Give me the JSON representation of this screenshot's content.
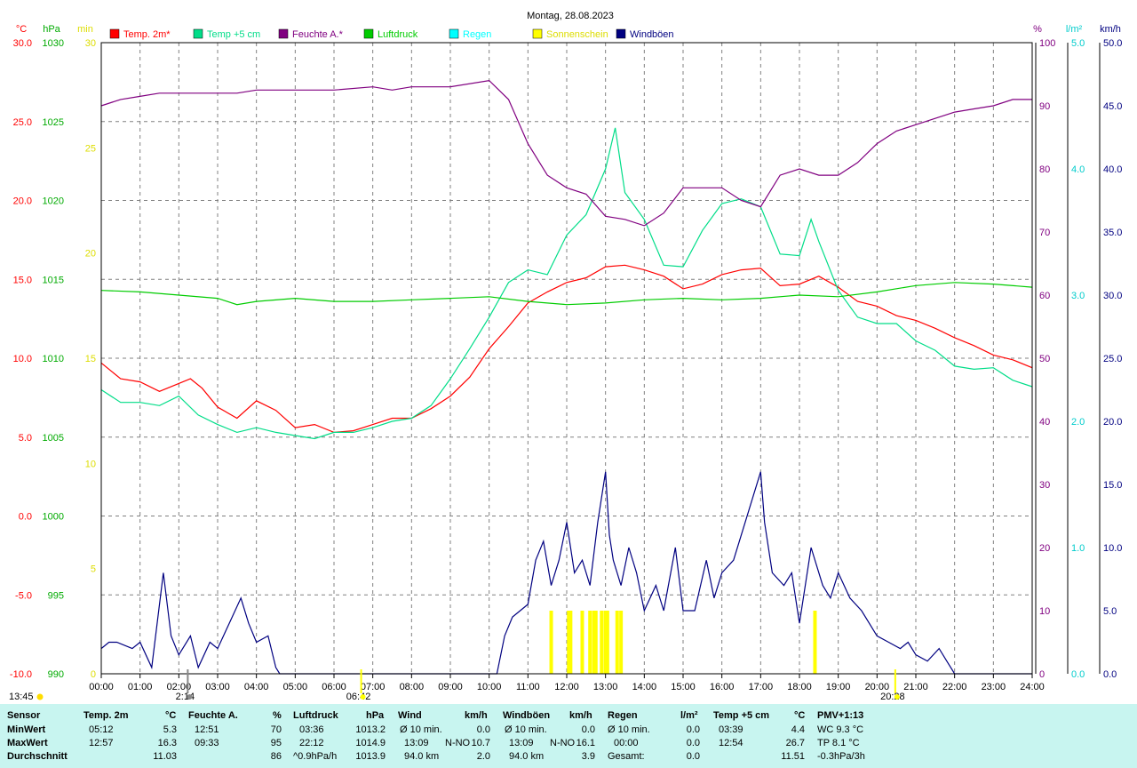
{
  "chart_data": {
    "type": "line",
    "title": "Montag, 28.08.2023",
    "x_ticks": [
      "00:00",
      "01:00",
      "02:00",
      "03:00",
      "04:00",
      "05:00",
      "06:00",
      "07:00",
      "08:00",
      "09:00",
      "10:00",
      "11:00",
      "12:00",
      "13:00",
      "14:00",
      "15:00",
      "16:00",
      "17:00",
      "18:00",
      "19:00",
      "20:00",
      "21:00",
      "22:00",
      "23:00",
      "24:00"
    ],
    "axes": {
      "temp": {
        "unit": "°C",
        "ticks": [
          "30.0",
          "25.0",
          "20.0",
          "15.0",
          "10.0",
          "5.0",
          "0.0",
          "-5.0",
          "-10.0"
        ],
        "range": [
          -10,
          30
        ],
        "color": "#ff0000"
      },
      "pressure": {
        "unit": "hPa",
        "ticks": [
          "1030",
          "1025",
          "1020",
          "1015",
          "1010",
          "1005",
          "1000",
          "995",
          "990"
        ],
        "range": [
          990,
          1030
        ],
        "color": "#00aa00"
      },
      "sunshine": {
        "unit": "min",
        "ticks": [
          "30",
          "25",
          "20",
          "15",
          "10",
          "5",
          "0"
        ],
        "range": [
          0,
          30
        ],
        "color": "#dddd00"
      },
      "humidity": {
        "unit": "%",
        "ticks": [
          "100",
          "90",
          "80",
          "70",
          "60",
          "50",
          "40",
          "30",
          "20",
          "10",
          "0"
        ],
        "range": [
          0,
          100
        ],
        "color": "#800080"
      },
      "rain": {
        "unit": "l/m²",
        "ticks": [
          "5.0",
          "4.0",
          "3.0",
          "2.0",
          "1.0",
          "0.0"
        ],
        "range": [
          0,
          5
        ],
        "color": "#00cccc"
      },
      "wind": {
        "unit": "km/h",
        "ticks": [
          "50.0",
          "45.0",
          "40.0",
          "35.0",
          "30.0",
          "25.0",
          "20.0",
          "15.0",
          "10.0",
          "5.0",
          "0.0"
        ],
        "range": [
          0,
          50
        ],
        "color": "#000080"
      }
    },
    "legend": [
      {
        "name": "Temp. 2m*",
        "color": "#ff0000"
      },
      {
        "name": "Temp +5 cm",
        "color": "#00dd88"
      },
      {
        "name": "Feuchte A.*",
        "color": "#800080"
      },
      {
        "name": "Luftdruck",
        "color": "#00cc00"
      },
      {
        "name": "Regen",
        "color": "#00ffff"
      },
      {
        "name": "Sonnenschein",
        "color": "#ffff00"
      },
      {
        "name": "Windböen",
        "color": "#000080"
      }
    ],
    "series": [
      {
        "name": "Temp. 2m*",
        "axis": "temp",
        "color": "#ff0000",
        "x": [
          0,
          0.5,
          1,
          1.5,
          2,
          2.3,
          2.6,
          3,
          3.5,
          4,
          4.5,
          5,
          5.5,
          6,
          6.5,
          7,
          7.5,
          8,
          8.5,
          9,
          9.5,
          10,
          10.5,
          11,
          11.5,
          12,
          12.5,
          13,
          13.5,
          14,
          14.5,
          15,
          15.5,
          16,
          16.5,
          17,
          17.5,
          18,
          18.5,
          19,
          19.5,
          20,
          20.5,
          21,
          21.5,
          22,
          22.5,
          23,
          23.5,
          24
        ],
        "y": [
          9.7,
          8.7,
          8.5,
          7.9,
          8.4,
          8.7,
          8.1,
          6.9,
          6.2,
          7.3,
          6.7,
          5.6,
          5.8,
          5.3,
          5.4,
          5.8,
          6.2,
          6.2,
          6.8,
          7.6,
          8.8,
          10.6,
          12.0,
          13.5,
          14.2,
          14.8,
          15.1,
          15.8,
          15.9,
          15.6,
          15.2,
          14.4,
          14.7,
          15.3,
          15.6,
          15.7,
          14.6,
          14.7,
          15.2,
          14.5,
          13.6,
          13.3,
          12.7,
          12.4,
          11.9,
          11.3,
          10.8,
          10.2,
          9.9,
          9.4
        ]
      },
      {
        "name": "Temp +5 cm",
        "axis": "temp",
        "color": "#00dd88",
        "x": [
          0,
          0.5,
          1,
          1.5,
          2,
          2.5,
          3,
          3.5,
          4,
          4.5,
          5,
          5.5,
          6,
          6.5,
          7,
          7.5,
          8,
          8.5,
          9,
          9.5,
          10,
          10.5,
          11,
          11.5,
          12,
          12.5,
          13,
          13.25,
          13.5,
          14,
          14.5,
          15,
          15.5,
          16,
          16.5,
          17,
          17.5,
          18,
          18.3,
          18.5,
          19,
          19.5,
          20,
          20.5,
          21,
          21.5,
          22,
          22.5,
          23,
          23.5,
          24
        ],
        "y": [
          8.0,
          7.2,
          7.2,
          7.0,
          7.6,
          6.4,
          5.8,
          5.3,
          5.6,
          5.3,
          5.1,
          4.9,
          5.3,
          5.3,
          5.6,
          6.0,
          6.2,
          7.0,
          8.7,
          10.6,
          12.6,
          14.8,
          15.6,
          15.3,
          17.8,
          19.1,
          22.0,
          24.6,
          20.5,
          18.8,
          15.9,
          15.8,
          18.1,
          19.8,
          20.1,
          19.6,
          16.6,
          16.5,
          18.8,
          17.4,
          14.3,
          12.6,
          12.2,
          12.2,
          11.1,
          10.5,
          9.5,
          9.3,
          9.4,
          8.6,
          8.2
        ]
      },
      {
        "name": "Feuchte A.*",
        "axis": "humidity",
        "color": "#800080",
        "x": [
          0,
          0.5,
          1,
          1.5,
          2,
          3,
          3.5,
          4,
          5,
          6,
          7,
          7.5,
          8,
          9,
          10,
          10.5,
          11,
          11.5,
          12,
          12.5,
          13,
          13.5,
          14,
          14.5,
          15,
          15.5,
          16,
          16.5,
          17,
          17.5,
          18,
          18.5,
          19,
          19.5,
          20,
          20.5,
          21,
          21.5,
          22,
          22.5,
          23,
          23.5,
          24
        ],
        "y": [
          90,
          91,
          91.5,
          92,
          92,
          92,
          92,
          92.5,
          92.5,
          92.5,
          93,
          92.5,
          93,
          93,
          94,
          91,
          84,
          79,
          77,
          76,
          72.5,
          72,
          71,
          73,
          77,
          77,
          77,
          75,
          74,
          79,
          80,
          79,
          79,
          81,
          84,
          86,
          87,
          88,
          89,
          89.5,
          90,
          91,
          91
        ]
      },
      {
        "name": "Luftdruck",
        "axis": "pressure",
        "color": "#00cc00",
        "x": [
          0,
          1,
          2,
          3,
          3.5,
          4,
          5,
          6,
          7,
          8,
          9,
          10,
          11,
          12,
          13,
          14,
          15,
          16,
          17,
          18,
          19,
          20,
          21,
          22,
          23,
          24
        ],
        "y": [
          1014.3,
          1014.2,
          1014.0,
          1013.8,
          1013.4,
          1013.6,
          1013.8,
          1013.6,
          1013.6,
          1013.7,
          1013.8,
          1013.9,
          1013.6,
          1013.4,
          1013.5,
          1013.7,
          1013.8,
          1013.7,
          1013.8,
          1014.0,
          1013.9,
          1014.2,
          1014.6,
          1014.8,
          1014.7,
          1014.5
        ]
      },
      {
        "name": "Windböen",
        "axis": "wind",
        "color": "#000080",
        "x": [
          0,
          0.2,
          0.4,
          0.8,
          1,
          1.3,
          1.6,
          1.8,
          2,
          2.3,
          2.5,
          2.8,
          3,
          3.3,
          3.6,
          3.8,
          4,
          4.3,
          4.5,
          4.6,
          10.2,
          10.4,
          10.6,
          11,
          11.2,
          11.4,
          11.6,
          11.8,
          12,
          12.2,
          12.4,
          12.6,
          12.8,
          13,
          13.1,
          13.2,
          13.4,
          13.6,
          13.8,
          14,
          14.3,
          14.5,
          14.8,
          15,
          15.3,
          15.6,
          15.8,
          16,
          16.3,
          16.6,
          16.8,
          17,
          17.1,
          17.3,
          17.6,
          17.8,
          18,
          18.3,
          18.6,
          18.8,
          19,
          19.3,
          19.6,
          19.8,
          20,
          20.3,
          20.6,
          20.8,
          21,
          21.3,
          21.6,
          21.8,
          22,
          22.5,
          24
        ],
        "y": [
          2,
          2.5,
          2.5,
          2,
          2.5,
          0.5,
          8,
          3,
          1.5,
          3,
          0.5,
          2.5,
          2,
          4,
          6,
          4,
          2.5,
          3,
          0.5,
          0,
          0,
          3,
          4.5,
          5.5,
          9,
          10.5,
          7,
          9,
          12,
          8,
          9,
          7,
          12,
          16,
          11,
          9,
          7,
          10,
          8,
          5,
          7,
          5,
          10,
          5,
          5,
          9,
          6,
          8,
          9,
          12,
          14,
          16,
          12,
          8,
          7,
          8,
          4,
          10,
          7,
          6,
          8,
          6,
          5,
          4,
          3,
          2.5,
          2,
          2.5,
          1.5,
          1,
          2,
          1,
          0,
          0,
          0
        ]
      },
      {
        "name": "Sonnenschein",
        "axis": "sunshine",
        "color": "#ffff00",
        "x": [
          11.6,
          12.05,
          12.1,
          12.4,
          12.6,
          12.7,
          12.75,
          12.9,
          13.0,
          13.05,
          13.3,
          13.4,
          18.4
        ],
        "y": [
          3,
          3,
          3,
          3,
          3,
          3,
          3,
          3,
          3,
          3,
          3,
          3,
          3
        ]
      }
    ],
    "markers": [
      {
        "x": 2.23,
        "label": "2:14",
        "color": "#888888"
      },
      {
        "x": 6.7,
        "label": "06:42",
        "color": "#ffff00"
      },
      {
        "x": 20.47,
        "label": "20:28",
        "color": "#ffff00"
      }
    ],
    "corner_label": "13:45",
    "grid": true
  },
  "stats": {
    "sensor": {
      "header": "Sensor",
      "rows": [
        "MinWert",
        "MaxWert",
        "Durchschnitt"
      ]
    },
    "temp2m": {
      "header": "Temp. 2m",
      "unit": "°C",
      "times": [
        "05:12",
        "12:57",
        ""
      ],
      "values": [
        "5.3",
        "16.3",
        "11.03"
      ]
    },
    "feuchte": {
      "header": "Feuchte A.",
      "unit": "%",
      "times": [
        "12:51",
        "09:33",
        ""
      ],
      "values": [
        "70",
        "95",
        "86"
      ]
    },
    "luftdruck": {
      "header": "Luftdruck",
      "unit": "hPa",
      "times": [
        "03:36",
        "22:12",
        "^0.9hPa/h"
      ],
      "values": [
        "1013.2",
        "1014.9",
        "1013.9"
      ]
    },
    "wind": {
      "header": "Wind",
      "unit": "km/h",
      "col1": [
        "Ø 10 min.",
        "13:09",
        "94.0 km"
      ],
      "col2": [
        "",
        "N-NO",
        ""
      ],
      "values": [
        "0.0",
        "10.7",
        "2.0"
      ]
    },
    "windboeen": {
      "header": "Windböen",
      "unit": "km/h",
      "col1": [
        "Ø 10 min.",
        "13:09",
        "94.0 km"
      ],
      "col2": [
        "",
        "N-NO",
        ""
      ],
      "values": [
        "0.0",
        "16.1",
        "3.9"
      ]
    },
    "regen": {
      "header": "Regen",
      "unit": "l/m²",
      "col1": [
        "Ø 10 min.",
        "00:00",
        "Gesamt:"
      ],
      "values": [
        "0.0",
        "0.0",
        "0.0"
      ]
    },
    "temp5cm": {
      "header": "Temp +5 cm",
      "unit": "°C",
      "times": [
        "03:39",
        "12:54",
        ""
      ],
      "values": [
        "4.4",
        "26.7",
        "11.51"
      ]
    },
    "pmv": {
      "header": "PMV+1:13",
      "rows": [
        "WC 9.3 °C",
        "TP 8.1 °C",
        "-0.3hPa/3h"
      ]
    }
  }
}
